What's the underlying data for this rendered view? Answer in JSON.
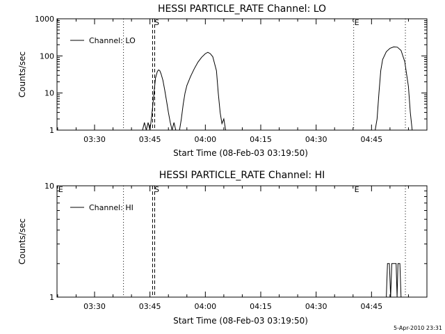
{
  "footer_date": "5-Apr-2010 23:31",
  "chart_data": [
    {
      "type": "line",
      "title": "HESSI PARTICLE_RATE Channel: LO",
      "xlabel": "Start Time (08-Feb-03 03:19:50)",
      "ylabel": "Counts/sec",
      "y_scale": "log",
      "ylim": [
        1,
        1000
      ],
      "xlim": [
        "03:19:50",
        "05:00:00"
      ],
      "y_ticks": [
        "1",
        "10",
        "100",
        "1000"
      ],
      "x_ticks": [
        "03:30",
        "03:45",
        "04:00",
        "04:15",
        "04:30",
        "04:45"
      ],
      "legend": {
        "placement": "top-left",
        "entries": [
          "Channel: LO"
        ]
      },
      "event_markers": [
        {
          "time": "03:46:00",
          "label": "S",
          "style": "dashed"
        },
        {
          "time": "04:40:10",
          "label": "E",
          "style": "dotted"
        }
      ],
      "reference_lines": [
        {
          "time": "03:37:50",
          "style": "dotted"
        },
        {
          "time": "04:54:10",
          "style": "dotted"
        }
      ],
      "series": [
        {
          "name": "Channel: LO",
          "segments": [
            [
              [
                "03:43:00",
                1
              ],
              [
                "03:43:30",
                1.6
              ],
              [
                "03:44:00",
                1
              ],
              [
                "03:44:30",
                1.6
              ],
              [
                "03:45:00",
                1
              ],
              [
                "03:45:30",
                2.5
              ],
              [
                "03:46:00",
                8
              ],
              [
                "03:46:30",
                25
              ],
              [
                "03:47:00",
                38
              ],
              [
                "03:47:20",
                42
              ],
              [
                "03:47:40",
                40
              ],
              [
                "03:48:00",
                33
              ],
              [
                "03:48:30",
                22
              ],
              [
                "03:49:00",
                12
              ],
              [
                "03:49:30",
                6
              ],
              [
                "03:50:00",
                3
              ],
              [
                "03:50:30",
                1.6
              ],
              [
                "03:51:00",
                1
              ],
              [
                "03:51:30",
                1.6
              ],
              [
                "03:52:00",
                1
              ]
            ],
            [
              [
                "03:53:00",
                1
              ],
              [
                "03:53:30",
                2
              ],
              [
                "03:54:00",
                5
              ],
              [
                "03:54:30",
                10
              ],
              [
                "03:55:00",
                16
              ],
              [
                "03:56:00",
                28
              ],
              [
                "03:57:00",
                45
              ],
              [
                "03:58:00",
                68
              ],
              [
                "03:59:00",
                92
              ],
              [
                "04:00:00",
                115
              ],
              [
                "04:00:40",
                125
              ],
              [
                "04:01:20",
                115
              ],
              [
                "04:02:00",
                95
              ],
              [
                "04:03:00",
                40
              ],
              [
                "04:03:30",
                10
              ],
              [
                "04:04:00",
                3
              ],
              [
                "04:04:30",
                1.5
              ],
              [
                "04:05:00",
                2
              ],
              [
                "04:05:30",
                1
              ]
            ],
            [
              [
                "04:46:00",
                1
              ],
              [
                "04:46:30",
                2
              ],
              [
                "04:47:00",
                10
              ],
              [
                "04:47:30",
                40
              ],
              [
                "04:48:00",
                80
              ],
              [
                "04:49:00",
                130
              ],
              [
                "04:50:00",
                160
              ],
              [
                "04:51:00",
                175
              ],
              [
                "04:52:00",
                172
              ],
              [
                "04:53:00",
                140
              ],
              [
                "04:54:00",
                70
              ],
              [
                "04:55:00",
                15
              ],
              [
                "04:55:30",
                3
              ],
              [
                "04:56:00",
                1
              ]
            ]
          ]
        }
      ]
    },
    {
      "type": "line",
      "title": "HESSI PARTICLE_RATE Channel: HI",
      "xlabel": "Start Time (08-Feb-03 03:19:50)",
      "ylabel": "Counts/sec",
      "y_scale": "log",
      "ylim": [
        1,
        10
      ],
      "xlim": [
        "03:19:50",
        "05:00:00"
      ],
      "y_ticks": [
        "1",
        "10"
      ],
      "x_ticks": [
        "03:30",
        "03:45",
        "04:00",
        "04:15",
        "04:30",
        "04:45"
      ],
      "legend": {
        "placement": "top-left",
        "entries": [
          "Channel: HI"
        ]
      },
      "event_markers": [
        {
          "time": "03:20:00",
          "label": "E",
          "style": "none"
        },
        {
          "time": "03:46:00",
          "label": "S",
          "style": "dashed"
        },
        {
          "time": "04:40:10",
          "label": "E",
          "style": "none"
        }
      ],
      "reference_lines": [
        {
          "time": "03:37:50",
          "style": "dotted"
        },
        {
          "time": "04:54:10",
          "style": "dotted"
        }
      ],
      "series": [
        {
          "name": "Channel: HI",
          "segments": [
            [
              [
                "04:49:00",
                1
              ],
              [
                "04:49:20",
                2
              ],
              [
                "04:49:50",
                2
              ],
              [
                "04:50:10",
                1
              ],
              [
                "04:50:30",
                2
              ],
              [
                "04:51:40",
                2
              ],
              [
                "04:51:55",
                1
              ],
              [
                "04:52:10",
                2
              ],
              [
                "04:52:40",
                2
              ],
              [
                "04:53:00",
                1
              ]
            ]
          ]
        }
      ]
    }
  ]
}
